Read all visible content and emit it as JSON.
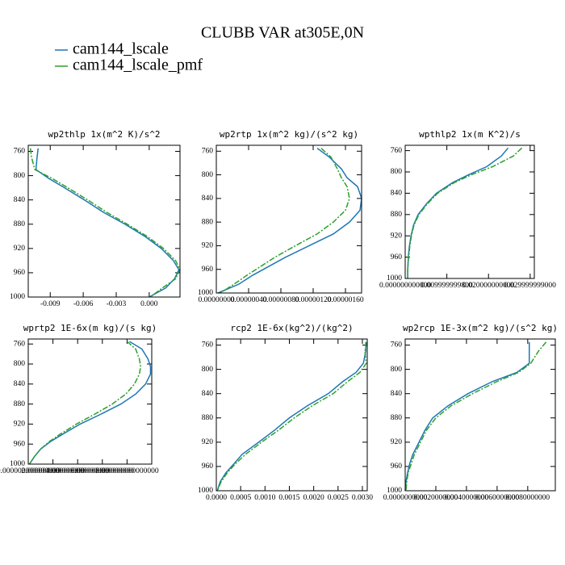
{
  "title": "CLUBB VAR at305E,0N",
  "chart_data": [
    {
      "type": "line",
      "title": "wp2thlp   1x(m^2 K)/s^2",
      "y": [
        755,
        770,
        790,
        805,
        820,
        840,
        860,
        880,
        900,
        920,
        940,
        955,
        970,
        985,
        1000
      ],
      "series": [
        {
          "name": "cam144_lscale",
          "color": "#1f77b4",
          "values": [
            -0.0101,
            -0.0102,
            -0.0103,
            -0.0091,
            -0.0077,
            -0.0059,
            -0.0042,
            -0.0022,
            -0.0004,
            0.0011,
            0.0022,
            0.0027,
            0.0023,
            0.0015,
            0.0
          ]
        },
        {
          "name": "cam144_lscale_pmf",
          "color": "#2ca02c",
          "values": [
            -0.0108,
            -0.0107,
            -0.0104,
            -0.0088,
            -0.0074,
            -0.0056,
            -0.0039,
            -0.002,
            -0.0002,
            0.0013,
            0.0024,
            0.0028,
            0.0024,
            0.0012,
            0.0001
          ]
        }
      ],
      "xlim": [
        -0.011,
        0.0028
      ],
      "xticks": [
        -0.009,
        -0.006,
        -0.003,
        {
          "value": 0,
          "label": "0.000"
        }
      ],
      "ylim": [
        1000,
        750
      ],
      "yticks": [
        760,
        800,
        840,
        880,
        920,
        960,
        1000
      ]
    },
    {
      "type": "line",
      "title": "wp2rtp   1x(m^2 kg)/(s^2 kg)",
      "y": [
        755,
        770,
        790,
        805,
        820,
        840,
        860,
        880,
        900,
        920,
        940,
        955,
        970,
        985,
        1000
      ],
      "series": [
        {
          "name": "cam144_lscale",
          "color": "#1f77b4",
          "values": [
            1.25e-06,
            1.4e-06,
            1.55e-06,
            1.62e-06,
            1.75e-06,
            1.8e-06,
            1.78e-06,
            1.65e-06,
            1.45e-06,
            1.15e-06,
            8.5e-07,
            6.5e-07,
            4.5e-07,
            2.8e-07,
            2e-08
          ]
        },
        {
          "name": "cam144_lscale_pmf",
          "color": "#2ca02c",
          "values": [
            1.3e-06,
            1.42e-06,
            1.5e-06,
            1.55e-06,
            1.62e-06,
            1.65e-06,
            1.6e-06,
            1.45e-06,
            1.25e-06,
            9.8e-07,
            7.2e-07,
            5.5e-07,
            3.8e-07,
            2.2e-07,
            5e-08
          ]
        }
      ],
      "xlim": [
        0,
        1.8e-06
      ],
      "xticks": [
        {
          "value": 0,
          "label": "0.00000000"
        },
        {
          "value": 4e-07,
          "label": "0.00000040"
        },
        {
          "value": 8e-07,
          "label": "0.00000080"
        },
        {
          "value": 1.2e-06,
          "label": "0.00000120"
        },
        {
          "value": 1.6e-06,
          "label": "0.00000160"
        }
      ],
      "ylim": [
        1000,
        750
      ],
      "yticks": [
        760,
        800,
        840,
        880,
        920,
        960,
        1000
      ]
    },
    {
      "type": "line",
      "title": "wpthlp2   1x(m K^2)/s",
      "y": [
        755,
        770,
        790,
        805,
        820,
        840,
        860,
        880,
        900,
        920,
        940,
        955,
        970,
        985,
        1000
      ],
      "series": [
        {
          "name": "cam144_lscale",
          "color": "#1f77b4",
          "values": [
            0.0247,
            0.0231,
            0.0196,
            0.0153,
            0.0114,
            0.0075,
            0.0051,
            0.0031,
            0.002,
            0.0014,
            0.001,
            0.0008,
            0.0007,
            0.0006,
            0.0006
          ]
        },
        {
          "name": "cam144_lscale_pmf",
          "color": "#2ca02c",
          "values": [
            0.028,
            0.026,
            0.021,
            0.016,
            0.0118,
            0.0078,
            0.0053,
            0.0033,
            0.0021,
            0.0015,
            0.0011,
            0.0009,
            0.0007,
            0.0006,
            0.0006
          ]
        }
      ],
      "xlim": [
        0,
        0.031
      ],
      "xticks": [
        {
          "value": 0,
          "label": "0.000000000000"
        },
        {
          "value": 0.01,
          "label": "0.009999999800"
        },
        {
          "value": 0.02,
          "label": "0.020000000000"
        },
        {
          "value": 0.03,
          "label": "0.029999999000"
        }
      ],
      "ylim": [
        1000,
        750
      ],
      "yticks": [
        760,
        800,
        840,
        880,
        920,
        960,
        1000
      ]
    },
    {
      "type": "line",
      "title": "wprtp2   1E-6x(m kg)/(s kg)",
      "y": [
        755,
        770,
        790,
        805,
        820,
        840,
        860,
        880,
        900,
        920,
        940,
        955,
        970,
        985,
        1000
      ],
      "series": [
        {
          "name": "cam144_lscale",
          "color": "#1f77b4",
          "values": [
            8.2,
            9.2,
            9.7,
            9.9,
            9.9,
            9.5,
            8.7,
            7.5,
            5.9,
            4.2,
            2.8,
            1.8,
            1.0,
            0.5,
            0.1
          ]
        },
        {
          "name": "cam144_lscale_pmf",
          "color": "#2ca02c",
          "values": [
            8.0,
            8.7,
            9.0,
            9.1,
            9.0,
            8.6,
            7.9,
            6.8,
            5.4,
            3.9,
            2.6,
            1.7,
            1.0,
            0.5,
            0.1
          ]
        }
      ],
      "xlim": [
        0,
        10
      ],
      "xticks": [
        {
          "value": 0,
          "label": "0.000000000000000"
        },
        {
          "value": 2,
          "label": "2.000000000000000"
        },
        {
          "value": 4,
          "label": "4.000000000000000"
        },
        {
          "value": 6,
          "label": "6.000000000000000"
        },
        {
          "value": 8,
          "label": "8.000000000000000"
        }
      ],
      "ylim": [
        1000,
        750
      ],
      "yticks": [
        760,
        800,
        840,
        880,
        920,
        960,
        1000
      ]
    },
    {
      "type": "line",
      "title": "rcp2   1E-6x(kg^2)/(kg^2)",
      "y": [
        755,
        770,
        790,
        805,
        820,
        840,
        860,
        880,
        900,
        920,
        940,
        955,
        970,
        985,
        1000
      ],
      "series": [
        {
          "name": "cam144_lscale",
          "color": "#1f77b4",
          "values": [
            0.00307,
            0.00307,
            0.00302,
            0.00287,
            0.0026,
            0.0023,
            0.00187,
            0.0015,
            0.0012,
            0.00087,
            0.00053,
            0.00037,
            0.0002,
            8e-05,
            2e-05
          ]
        },
        {
          "name": "cam144_lscale_pmf",
          "color": "#2ca02c",
          "values": [
            0.0031,
            0.00305,
            0.00308,
            0.00295,
            0.0027,
            0.0024,
            0.00197,
            0.0016,
            0.00128,
            0.00093,
            0.0006,
            0.0004,
            0.00023,
            0.0001,
            2e-05
          ]
        }
      ],
      "xlim": [
        0,
        0.0031
      ],
      "xticks": [
        {
          "value": 0,
          "label": "0.0000"
        },
        0.0005,
        {
          "value": 0.001,
          "label": "0.0010"
        },
        0.0015,
        {
          "value": 0.002,
          "label": "0.0020"
        },
        0.0025,
        {
          "value": 0.003,
          "label": "0.0030"
        }
      ],
      "ylim": [
        1000,
        750
      ],
      "yticks": [
        760,
        800,
        840,
        880,
        920,
        960,
        1000
      ]
    },
    {
      "type": "line",
      "title": "wp2rcp   1E-3x(m^2 kg)/(s^2 kg)",
      "y": [
        755,
        770,
        790,
        805,
        820,
        840,
        860,
        880,
        900,
        920,
        940,
        955,
        970,
        985,
        1000
      ],
      "series": [
        {
          "name": "cam144_lscale",
          "color": "#1f77b4",
          "values": [
            0.0081,
            0.0081,
            0.0081,
            0.0073,
            0.0057,
            0.0041,
            0.0028,
            0.0018,
            0.0013,
            0.0009,
            0.0005,
            0.0003,
            0.00016,
            5e-05,
            0.0
          ]
        },
        {
          "name": "cam144_lscale_pmf",
          "color": "#2ca02c",
          "values": [
            0.0092,
            0.0087,
            0.0082,
            0.0074,
            0.006,
            0.0044,
            0.003,
            0.002,
            0.0014,
            0.001,
            0.0006,
            0.0004,
            0.0002,
            0.0001,
            5e-05
          ]
        }
      ],
      "xlim": [
        0,
        0.0098
      ],
      "xticks": [
        {
          "value": 0,
          "label": "0.0000000000"
        },
        {
          "value": 0.002,
          "label": "0.0020000000"
        },
        {
          "value": 0.004,
          "label": "0.0040000000"
        },
        {
          "value": 0.006,
          "label": "0.0060000000"
        },
        {
          "value": 0.008,
          "label": "0.0080000000"
        }
      ],
      "ylim": [
        1000,
        750
      ],
      "yticks": [
        760,
        800,
        840,
        880,
        920,
        960,
        1000
      ]
    }
  ]
}
